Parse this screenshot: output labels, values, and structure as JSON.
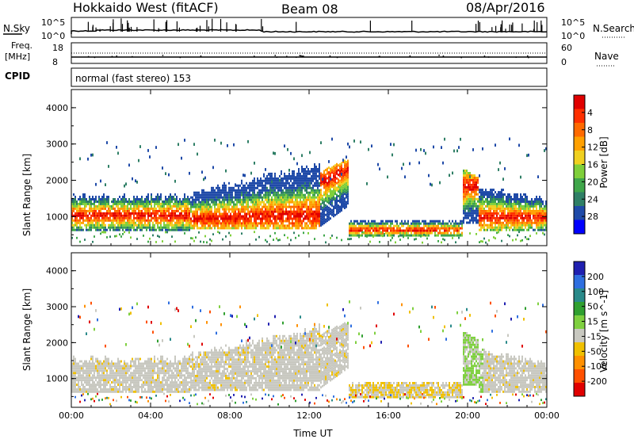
{
  "header": {
    "station": "Hokkaido West (fitACF)",
    "beam": "Beam 08",
    "date": "08/Apr/2016"
  },
  "top_panels": {
    "nsky_label": "N.Sky",
    "nsky_ticks": [
      "10^5",
      "10^0"
    ],
    "nsearch_label": "N.Search",
    "nsearch_ticks": [
      "10^5",
      "10^0"
    ],
    "freq_label": "Freq.",
    "freq_unit": "[MHz]",
    "freq_ticks": [
      "18",
      "8"
    ],
    "nave_label": "Nave",
    "nave_ticks": [
      "60",
      "0"
    ],
    "cpid_label": "CPID",
    "cpid_text": "normal (fast stereo) 153"
  },
  "colors": {
    "power_scale": [
      "#0000ff",
      "#1f4aa8",
      "#2f7f66",
      "#3fa64a",
      "#7fcf3a",
      "#f0d020",
      "#ffa000",
      "#ff6a00",
      "#ff3000",
      "#e00000"
    ],
    "velocity_scale": [
      "#2020b0",
      "#2f6fe0",
      "#2a8a8a",
      "#30a030",
      "#7fd040",
      "#c8c8c0",
      "#f0c000",
      "#ff9000",
      "#ff5000",
      "#e00000"
    ]
  },
  "chart_data": [
    {
      "type": "heatmap",
      "title": "Power",
      "xlabel": "Time UT",
      "ylabel": "Slant Range [km]",
      "x_ticks": [
        "00:00",
        "04:00",
        "08:00",
        "12:00",
        "16:00",
        "20:00",
        "00:00"
      ],
      "y_ticks": [
        1000,
        2000,
        3000,
        4000
      ],
      "ylim": [
        200,
        4500
      ],
      "colorbar_label": "Power [dB]",
      "colorbar_ticks": [
        4,
        8,
        12,
        16,
        20,
        24,
        28
      ],
      "colorbar_range": [
        0,
        30
      ]
    },
    {
      "type": "heatmap",
      "title": "Velocity",
      "xlabel": "Time UT",
      "ylabel": "Slant Range [km]",
      "x_ticks": [
        "00:00",
        "04:00",
        "08:00",
        "12:00",
        "16:00",
        "20:00",
        "00:00"
      ],
      "y_ticks": [
        1000,
        2000,
        3000,
        4000
      ],
      "ylim": [
        200,
        4500
      ],
      "colorbar_label": "Velocity [m s^-1]",
      "colorbar_ticks": [
        200,
        100,
        50,
        15,
        -15,
        -50,
        -100,
        -200
      ],
      "colorbar_range": [
        -250,
        250
      ]
    }
  ]
}
